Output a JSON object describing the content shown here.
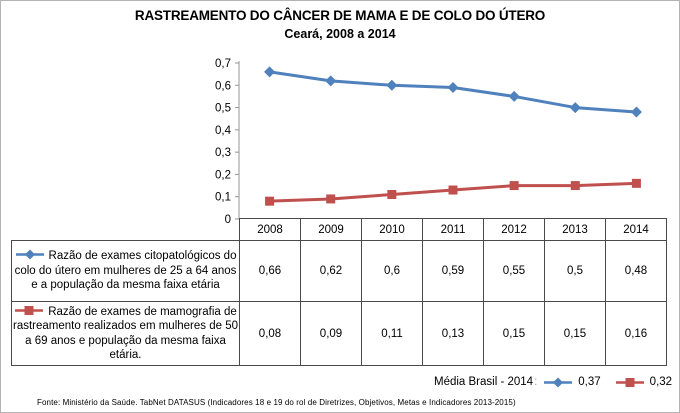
{
  "title": {
    "line1": "RASTREAMENTO DO CÂNCER DE MAMA E DE COLO DO ÚTERO",
    "line2": "Ceará, 2008 a 2014"
  },
  "chart_data": {
    "type": "line",
    "categories": [
      "2008",
      "2009",
      "2010",
      "2011",
      "2012",
      "2013",
      "2014"
    ],
    "series": [
      {
        "name": "Razão de exames citopatológicos do colo do útero em mulheres de 25 a 64 anos e a população da mesma faixa etária",
        "marker": "diamond",
        "color": "#4F81BD",
        "values": [
          0.66,
          0.62,
          0.6,
          0.59,
          0.55,
          0.5,
          0.48
        ],
        "labels": [
          "0,66",
          "0,62",
          "0,6",
          "0,59",
          "0,55",
          "0,5",
          "0,48"
        ]
      },
      {
        "name": "Razão de exames de mamografia de rastreamento realizados em mulheres de 50 a 69 anos e população da mesma faixa etária.",
        "marker": "square",
        "color": "#C0504D",
        "values": [
          0.08,
          0.09,
          0.11,
          0.13,
          0.15,
          0.15,
          0.16
        ],
        "labels": [
          "0,08",
          "0,09",
          "0,11",
          "0,13",
          "0,15",
          "0,15",
          "0,16"
        ]
      }
    ],
    "ylim": [
      0,
      0.7
    ],
    "ytick_labels": [
      "0",
      "0,1",
      "0,2",
      "0,3",
      "0,4",
      "0,5",
      "0,6",
      "0,7"
    ],
    "grid": false,
    "legend_position": "data-table-left",
    "axis_color": "#969696"
  },
  "media_brasil": {
    "label": "Média Brasil - 2014",
    "colon": ":",
    "blue_value": "0,37",
    "red_value": "0,32"
  },
  "footnote": "Fonte: Ministério da Saúde. TabNet DATASUS (Indicadores 18 e 19 do rol de Diretrizes, Objetivos, Metas e Indicadores 2013-2015)"
}
